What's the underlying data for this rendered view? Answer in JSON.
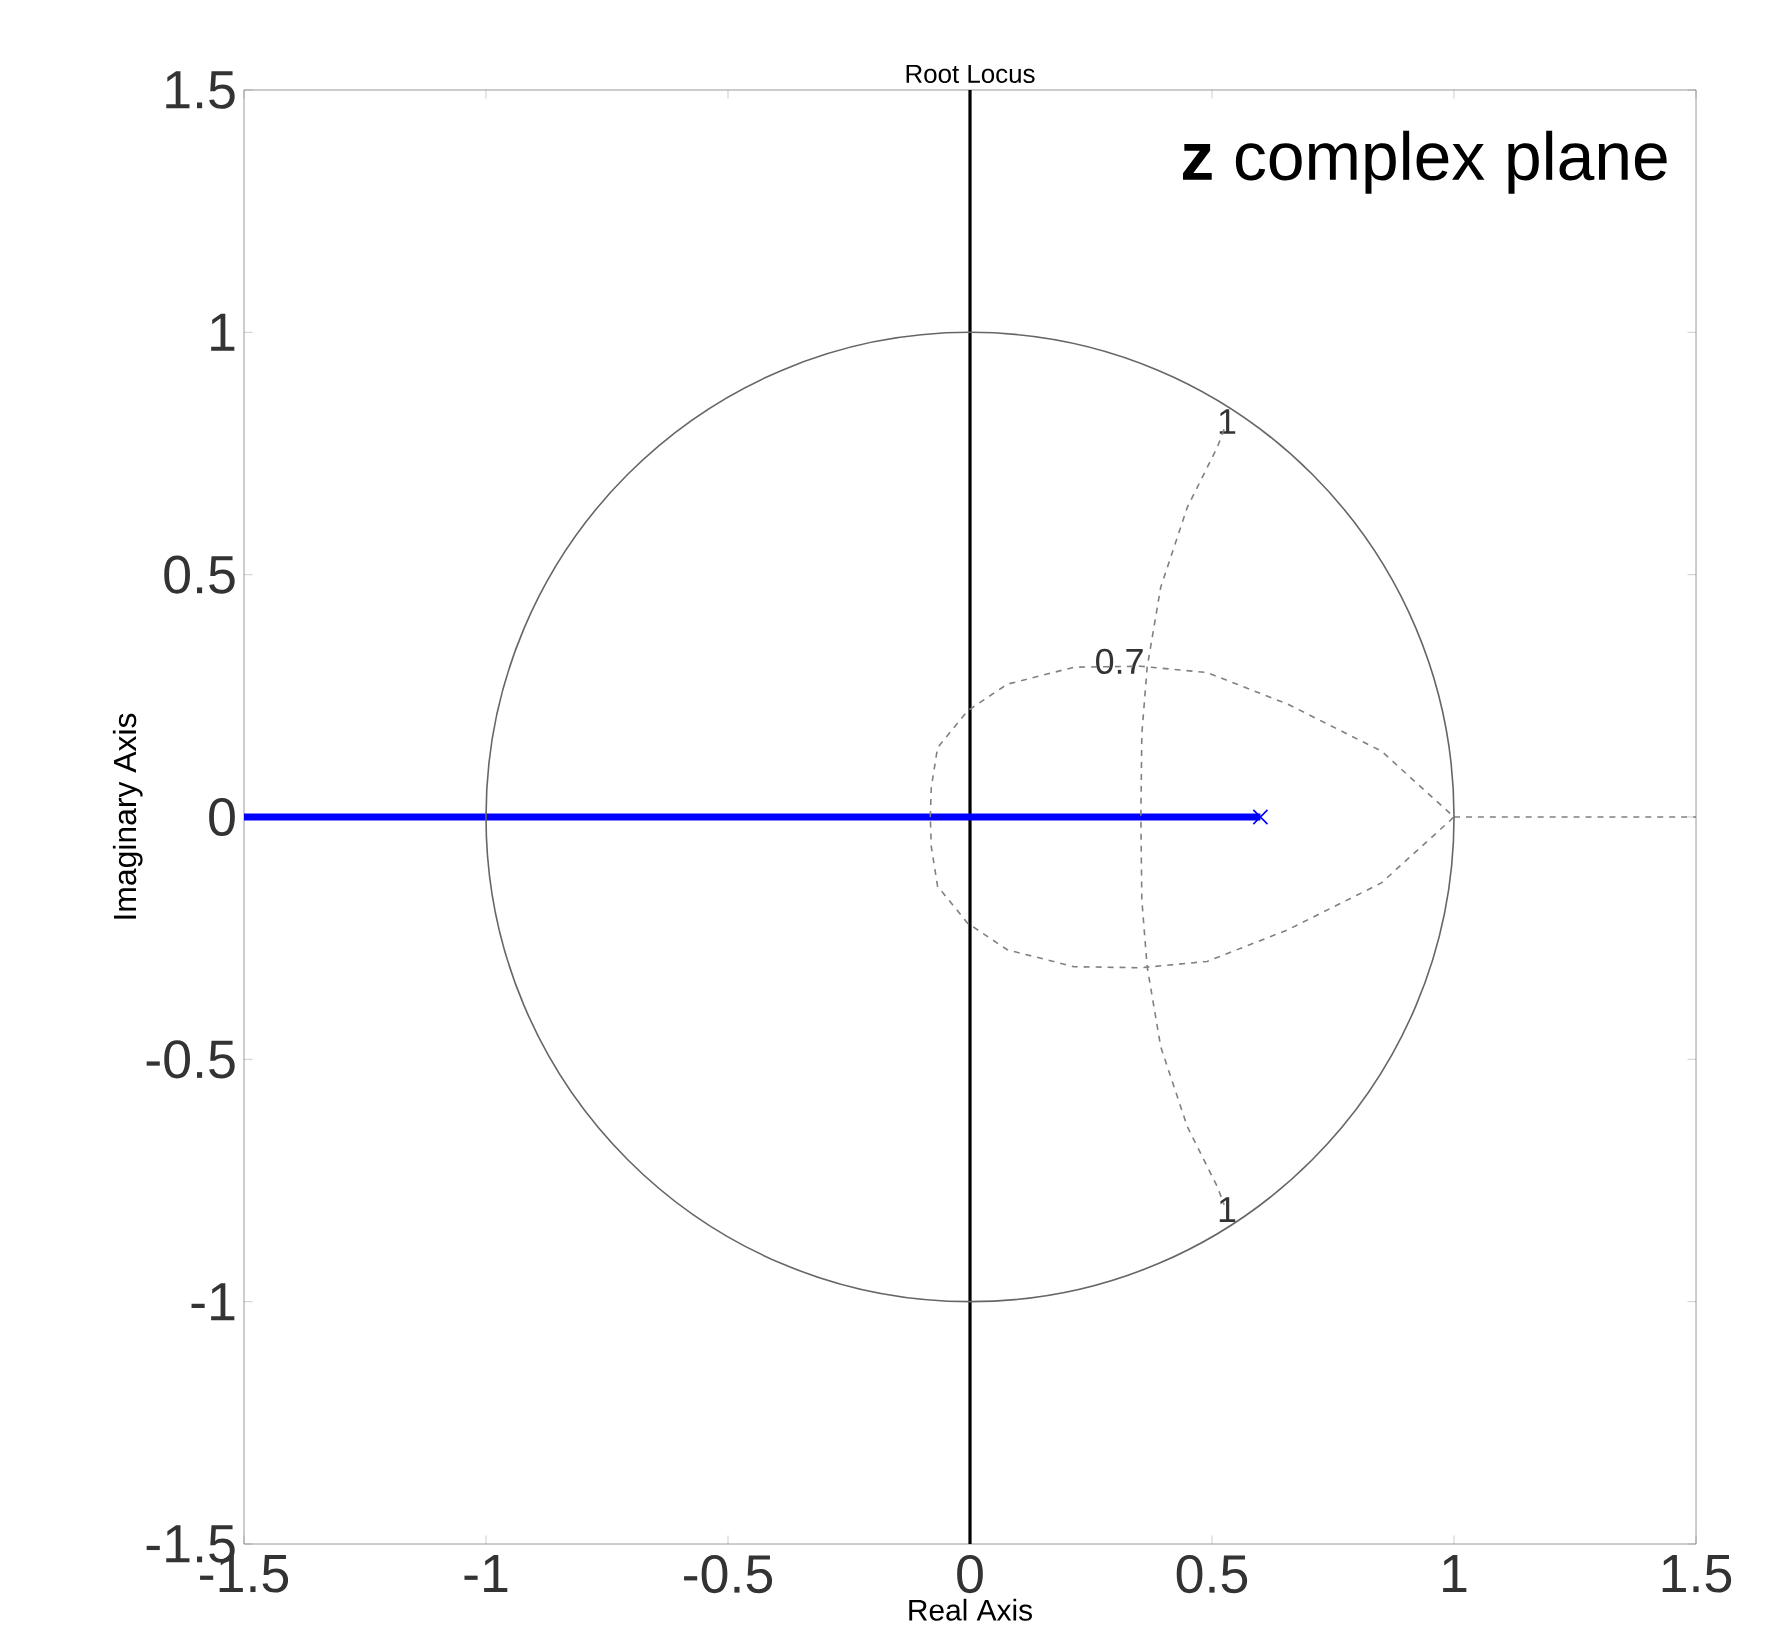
{
  "chart_data": {
    "type": "line",
    "title": "Root Locus",
    "xlabel": "Real Axis",
    "ylabel": "Imaginary Axis",
    "xlim": [
      -1.5,
      1.5
    ],
    "ylim": [
      -1.5,
      1.5
    ],
    "xticks": [
      -1.5,
      -1,
      -0.5,
      0,
      0.5,
      1,
      1.5
    ],
    "yticks": [
      -1.5,
      -1,
      -0.5,
      0,
      0.5,
      1,
      1.5
    ],
    "grid": false,
    "series": [
      {
        "color": "#0000ff",
        "x": [
          -1.5,
          0.6
        ],
        "values": [
          0,
          0
        ]
      },
      {
        "type": "scatter",
        "marker": "cross",
        "color": "#0000ff",
        "x": [
          0.6
        ],
        "values": [
          0
        ]
      },
      {
        "color": "#808080",
        "line_style": "dashed",
        "x": [
          1,
          1.5
        ],
        "values": [
          0,
          0
        ]
      }
    ],
    "ref_lines": [
      {
        "axis": "x",
        "value": 0,
        "color": "#000000"
      }
    ],
    "annotations": [
      "1",
      "0.7",
      "1",
      "**z** complex plane"
    ]
  }
}
